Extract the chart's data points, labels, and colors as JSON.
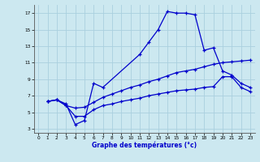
{
  "xlabel": "Graphe des températures (°c)",
  "background_color": "#cce8f0",
  "grid_color": "#aad0df",
  "line_color": "#0000cc",
  "xlim": [
    -0.5,
    23.5
  ],
  "ylim": [
    2.5,
    18.0
  ],
  "xticks": [
    0,
    1,
    2,
    3,
    4,
    5,
    6,
    7,
    8,
    9,
    10,
    11,
    12,
    13,
    14,
    15,
    16,
    17,
    18,
    19,
    20,
    21,
    22,
    23
  ],
  "yticks": [
    3,
    5,
    7,
    9,
    11,
    13,
    15,
    17
  ],
  "line1_x": [
    1,
    2,
    3,
    4,
    5,
    6,
    7,
    11,
    12,
    13,
    14,
    15,
    16,
    17,
    18,
    19,
    20,
    21,
    22,
    23
  ],
  "line1_y": [
    6.3,
    6.5,
    6.0,
    3.5,
    4.0,
    8.5,
    8.0,
    12.0,
    13.5,
    15.0,
    17.2,
    17.0,
    17.0,
    16.8,
    12.5,
    12.8,
    10.0,
    9.5,
    8.5,
    8.0
  ],
  "line2_x": [
    1,
    2,
    3,
    4,
    5,
    6,
    7,
    8,
    9,
    10,
    11,
    12,
    13,
    14,
    15,
    16,
    17,
    18,
    19,
    20,
    21,
    22,
    23
  ],
  "line2_y": [
    6.3,
    6.5,
    5.8,
    5.5,
    5.6,
    6.2,
    6.8,
    7.2,
    7.6,
    8.0,
    8.3,
    8.7,
    9.0,
    9.4,
    9.8,
    10.0,
    10.2,
    10.5,
    10.8,
    11.0,
    11.1,
    11.2,
    11.3
  ],
  "line3_x": [
    1,
    2,
    3,
    4,
    5,
    6,
    7,
    8,
    9,
    10,
    11,
    12,
    13,
    14,
    15,
    16,
    17,
    18,
    19,
    20,
    21,
    22,
    23
  ],
  "line3_y": [
    6.3,
    6.5,
    5.8,
    4.5,
    4.5,
    5.3,
    5.8,
    6.0,
    6.3,
    6.5,
    6.7,
    7.0,
    7.2,
    7.4,
    7.6,
    7.7,
    7.8,
    8.0,
    8.1,
    9.3,
    9.3,
    8.0,
    7.5
  ]
}
